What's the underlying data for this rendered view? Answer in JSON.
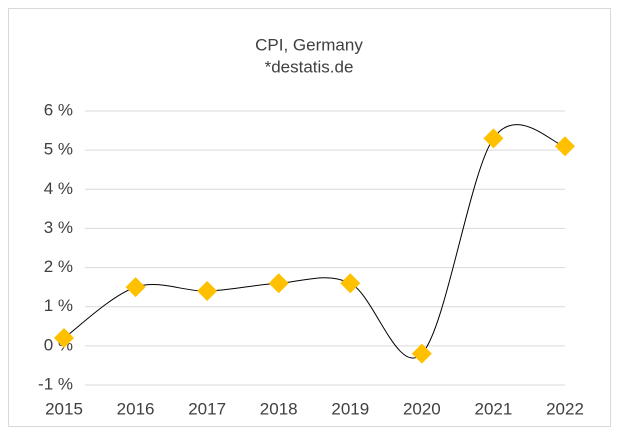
{
  "chart_data": {
    "type": "line",
    "title": "CPI, Germany",
    "subtitle": "*destatis.de",
    "categories": [
      "2015",
      "2016",
      "2017",
      "2018",
      "2019",
      "2020",
      "2021",
      "2022"
    ],
    "values": [
      0.2,
      1.5,
      1.4,
      1.6,
      1.6,
      -0.2,
      5.3,
      5.1
    ],
    "color": "#000000",
    "marker_color": "#FFC000",
    "ylim": [
      -1,
      6
    ],
    "yticks": [
      {
        "value": -1,
        "label": "-1 %"
      },
      {
        "value": 0,
        "label": "0 %"
      },
      {
        "value": 1,
        "label": "1 %"
      },
      {
        "value": 2,
        "label": "2 %"
      },
      {
        "value": 3,
        "label": "3 %"
      },
      {
        "value": 4,
        "label": "4 %"
      },
      {
        "value": 5,
        "label": "5 %"
      },
      {
        "value": 6,
        "label": "6 %"
      }
    ],
    "grid": true
  }
}
